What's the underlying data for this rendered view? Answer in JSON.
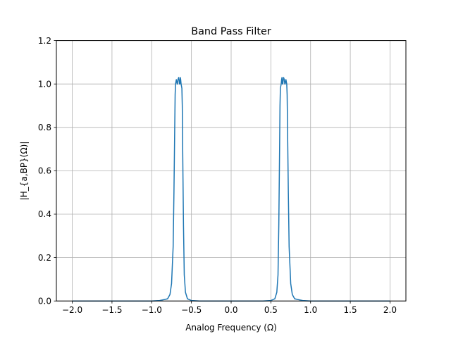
{
  "chart_data": {
    "type": "line",
    "title": "Band Pass Filter",
    "xlabel": "Analog Frequency (Ω)",
    "ylabel": "|H_{a,BP}(Ω)|",
    "xlim": [
      -2.2,
      2.2
    ],
    "ylim": [
      0,
      1.2
    ],
    "xticks": [
      -2.0,
      -1.5,
      -1.0,
      -0.5,
      0.0,
      0.5,
      1.0,
      1.5,
      2.0
    ],
    "xtick_labels": [
      "−2.0",
      "−1.5",
      "−1.0",
      "−0.5",
      "0.0",
      "0.5",
      "1.0",
      "1.5",
      "2.0"
    ],
    "yticks": [
      0.0,
      0.2,
      0.4,
      0.6,
      0.8,
      1.0,
      1.2
    ],
    "ytick_labels": [
      "0.0",
      "0.2",
      "0.4",
      "0.6",
      "0.8",
      "1.0",
      "1.2"
    ],
    "grid": true,
    "line_color": "#1f77b4",
    "series": [
      {
        "x": [
          -2.0,
          -1.0,
          -0.9,
          -0.8,
          -0.77,
          -0.75,
          -0.73,
          -0.72,
          -0.71,
          -0.705,
          -0.7,
          -0.69,
          -0.68,
          -0.675,
          -0.67,
          -0.66,
          -0.65,
          -0.645,
          -0.64,
          -0.635,
          -0.63,
          -0.625,
          -0.62,
          -0.615,
          -0.61,
          -0.6,
          -0.59,
          -0.575,
          -0.55,
          -0.5,
          -0.4,
          -0.2,
          0.0,
          0.2,
          0.4,
          0.5,
          0.55,
          0.575,
          0.59,
          0.6,
          0.61,
          0.615,
          0.62,
          0.625,
          0.63,
          0.635,
          0.64,
          0.645,
          0.65,
          0.66,
          0.67,
          0.675,
          0.68,
          0.69,
          0.7,
          0.705,
          0.71,
          0.72,
          0.73,
          0.75,
          0.77,
          0.8,
          0.9,
          1.0,
          2.0
        ],
        "y": [
          0.0,
          0.0,
          0.002,
          0.01,
          0.03,
          0.08,
          0.25,
          0.5,
          0.8,
          0.95,
          1.0,
          1.02,
          1.0,
          1.0,
          1.02,
          1.03,
          1.0,
          1.0,
          1.03,
          1.02,
          1.0,
          0.99,
          0.98,
          0.9,
          0.7,
          0.35,
          0.12,
          0.04,
          0.01,
          0.002,
          0.0,
          0.0,
          0.0,
          0.0,
          0.0,
          0.002,
          0.01,
          0.04,
          0.12,
          0.35,
          0.7,
          0.9,
          0.98,
          0.99,
          1.0,
          1.02,
          1.03,
          1.0,
          1.0,
          1.03,
          1.02,
          1.0,
          1.0,
          1.02,
          1.0,
          0.95,
          0.8,
          0.5,
          0.25,
          0.08,
          0.03,
          0.01,
          0.002,
          0.0,
          0.0
        ]
      }
    ]
  }
}
